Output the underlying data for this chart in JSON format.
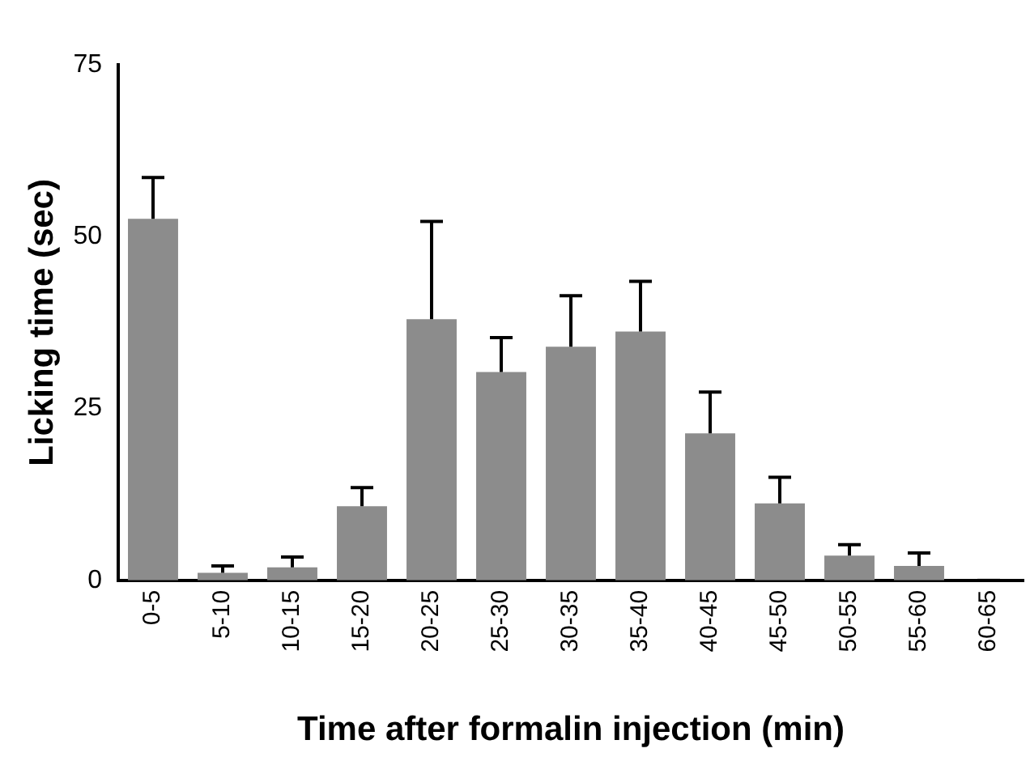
{
  "chart_data": {
    "type": "bar",
    "xlabel": "Time after formalin injection (min)",
    "ylabel": "Licking time (sec)",
    "categories": [
      "0-5",
      "5-10",
      "10-15",
      "15-20",
      "20-25",
      "25-30",
      "30-35",
      "35-40",
      "40-45",
      "45-50",
      "50-55",
      "55-60",
      "60-65"
    ],
    "values": [
      52.6,
      1.1,
      1.9,
      10.8,
      38,
      30.3,
      34,
      36.2,
      21.4,
      11.2,
      3.6,
      2.1,
      0
    ],
    "errors": [
      [
        52.6,
        58.6
      ],
      [
        1.1,
        2.1
      ],
      [
        1.9,
        3.4
      ],
      [
        10.8,
        13.5
      ],
      [
        38,
        52.2
      ],
      [
        30.3,
        35.3
      ],
      [
        34,
        41.4
      ],
      [
        36.2,
        43.5
      ],
      [
        21.4,
        27.4
      ],
      [
        11.2,
        15
      ],
      [
        3.6,
        5.2
      ],
      [
        2.1,
        4
      ],
      [
        0,
        0
      ]
    ],
    "color": "#8c8c8c",
    "ylim": [
      0,
      75
    ],
    "yticks": [
      0,
      25,
      50,
      75
    ],
    "grid": false,
    "legend": false
  }
}
